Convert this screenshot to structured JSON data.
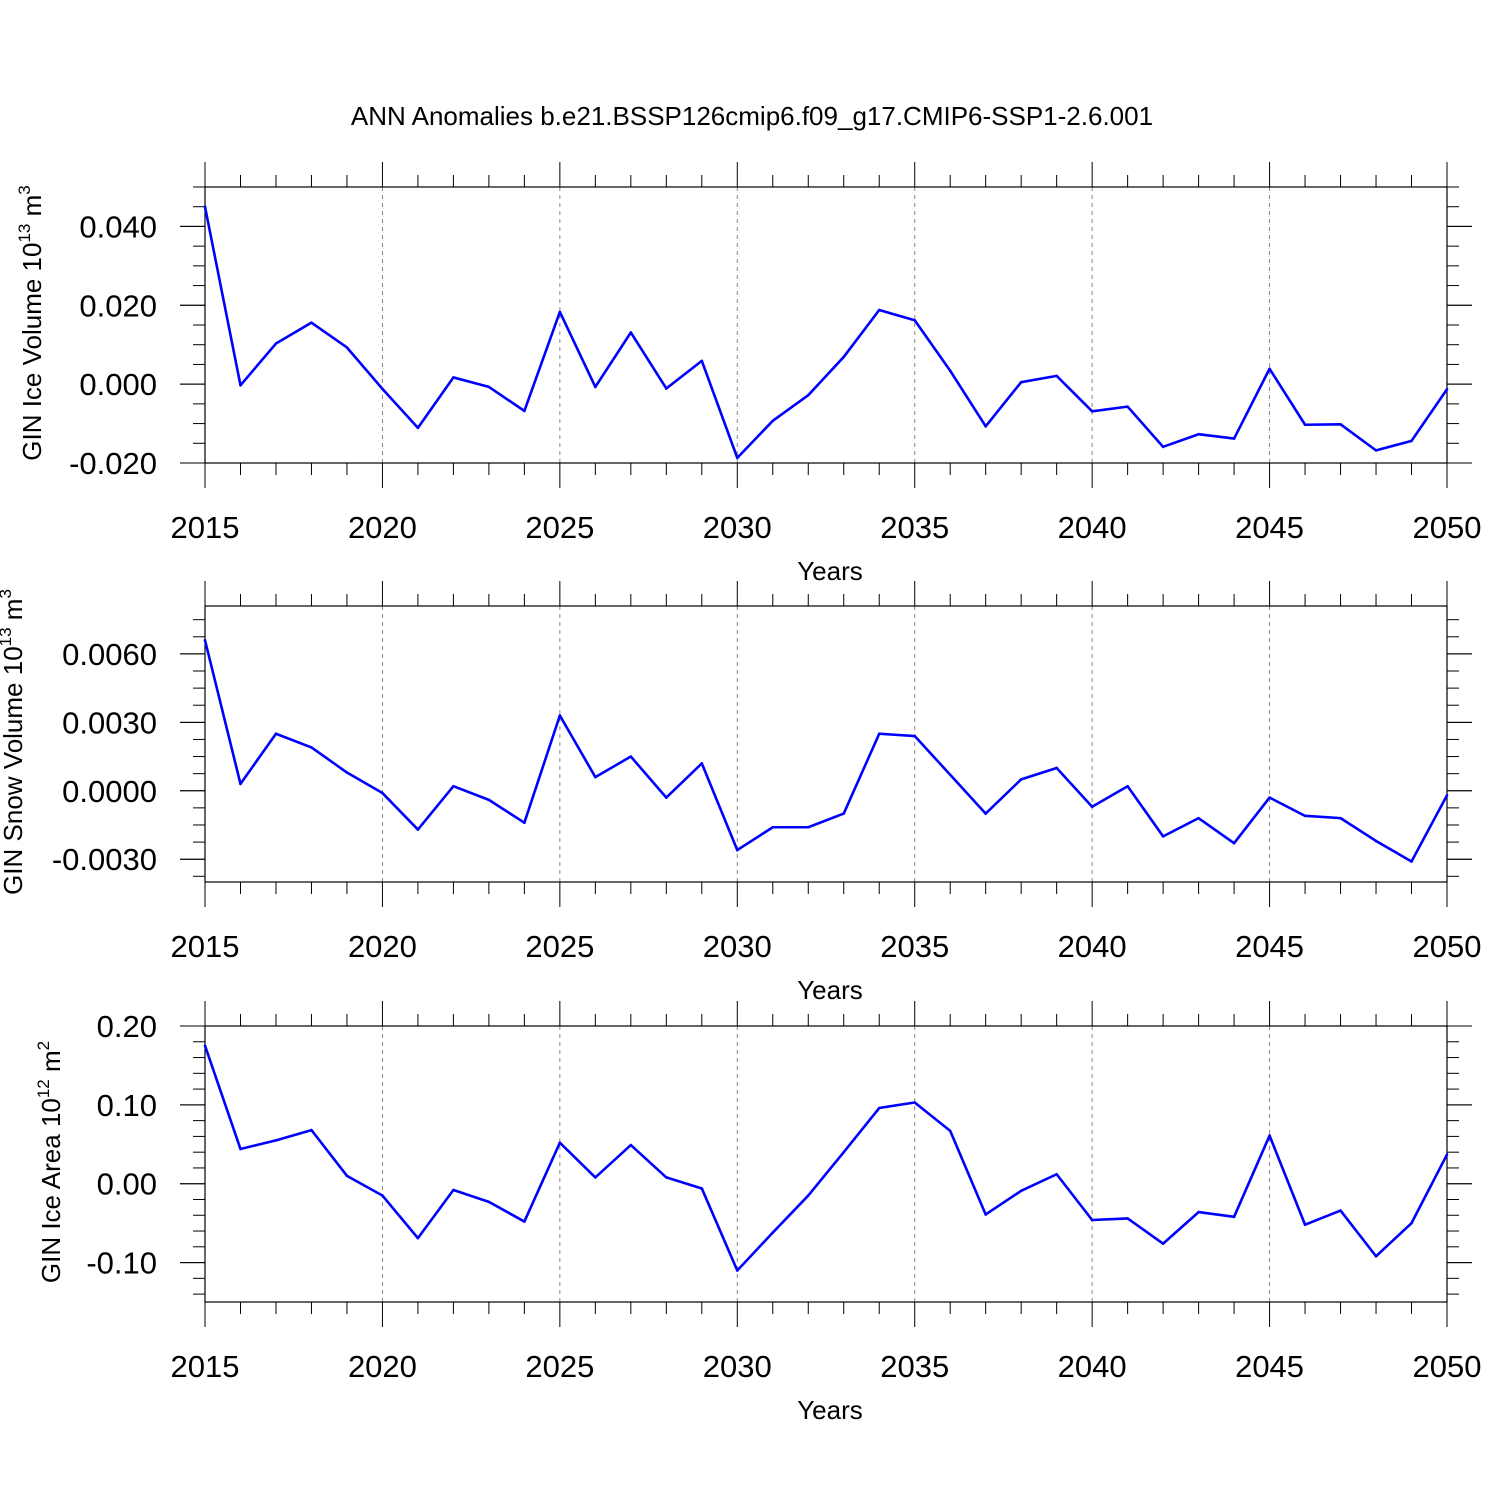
{
  "title": "ANN Anomalies b.e21.BSSP126cmip6.f09_g17.CMIP6-SSP1-2.6.001",
  "line_color": "#0000ff",
  "chart_data": [
    {
      "type": "line",
      "title": "ANN Anomalies b.e21.BSSP126cmip6.f09_g17.CMIP6-SSP1-2.6.001",
      "xlabel": "Years",
      "ylabel_parts": [
        "GIN Ice Volume 10",
        "13",
        " m",
        "3"
      ],
      "xlim": [
        2015,
        2050
      ],
      "ylim": [
        -0.02,
        0.05
      ],
      "x_ticks": [
        "2015",
        "2020",
        "2025",
        "2030",
        "2035",
        "2040",
        "2045",
        "2050"
      ],
      "y_ticks": [
        {
          "value": 0.04,
          "label": "0.040"
        },
        {
          "value": 0.02,
          "label": "0.020"
        },
        {
          "value": 0.0,
          "label": "0.000"
        },
        {
          "value": -0.02,
          "label": "-0.020"
        }
      ],
      "y_minor_step": 0.005,
      "grid_x": true,
      "series": [
        {
          "name": "GIN Ice Volume",
          "x": [
            2015,
            2016,
            2017,
            2018,
            2019,
            2020,
            2021,
            2022,
            2023,
            2024,
            2025,
            2026,
            2027,
            2028,
            2029,
            2030,
            2031,
            2032,
            2033,
            2034,
            2035,
            2036,
            2037,
            2038,
            2039,
            2040,
            2041,
            2042,
            2043,
            2044,
            2045,
            2046,
            2047,
            2048,
            2049,
            2050
          ],
          "values": [
            0.045,
            -0.0003,
            0.0103,
            0.0156,
            0.0093,
            -0.0012,
            -0.0111,
            0.0017,
            -0.0007,
            -0.0068,
            0.0183,
            -0.0007,
            0.0131,
            -0.0011,
            0.0059,
            -0.0187,
            -0.0093,
            -0.0028,
            0.0069,
            0.0188,
            0.0162,
            0.0034,
            -0.0107,
            0.0005,
            0.0021,
            -0.0069,
            -0.0057,
            -0.0159,
            -0.0127,
            -0.0138,
            0.0039,
            -0.0103,
            -0.0102,
            -0.0168,
            -0.0144,
            -0.0013
          ]
        }
      ]
    },
    {
      "type": "line",
      "title": "",
      "xlabel": "Years",
      "ylabel_parts": [
        "GIN Snow Volume 10",
        "13",
        " m",
        "3"
      ],
      "xlim": [
        2015,
        2050
      ],
      "ylim": [
        -0.004,
        0.0081
      ],
      "x_ticks": [
        "2015",
        "2020",
        "2025",
        "2030",
        "2035",
        "2040",
        "2045",
        "2050"
      ],
      "y_ticks": [
        {
          "value": 0.006,
          "label": "0.0060"
        },
        {
          "value": 0.003,
          "label": "0.0030"
        },
        {
          "value": 0.0,
          "label": "0.0000"
        },
        {
          "value": -0.003,
          "label": "-0.0030"
        }
      ],
      "y_minor_step": 0.00075,
      "grid_x": true,
      "series": [
        {
          "name": "GIN Snow Volume",
          "x": [
            2015,
            2016,
            2017,
            2018,
            2019,
            2020,
            2021,
            2022,
            2023,
            2024,
            2025,
            2026,
            2027,
            2028,
            2029,
            2030,
            2031,
            2032,
            2033,
            2034,
            2035,
            2036,
            2037,
            2038,
            2039,
            2040,
            2041,
            2042,
            2043,
            2044,
            2045,
            2046,
            2047,
            2048,
            2049,
            2050
          ],
          "values": [
            0.0066,
            0.0003,
            0.0025,
            0.0019,
            0.0008,
            -0.0001,
            -0.0017,
            0.0002,
            -0.0004,
            -0.0014,
            0.0033,
            0.0006,
            0.0015,
            -0.0003,
            0.0012,
            -0.0026,
            -0.0016,
            -0.0016,
            -0.001,
            0.0025,
            0.0024,
            0.0007,
            -0.001,
            0.0005,
            0.001,
            -0.0007,
            0.0002,
            -0.002,
            -0.0012,
            -0.0023,
            -0.0003,
            -0.0011,
            -0.0012,
            -0.0022,
            -0.0031,
            -0.0002
          ]
        }
      ]
    },
    {
      "type": "line",
      "title": "",
      "xlabel": "Years",
      "ylabel_parts": [
        "GIN Ice Area 10",
        "12",
        " m",
        "2"
      ],
      "xlim": [
        2015,
        2050
      ],
      "ylim": [
        -0.15,
        0.2
      ],
      "x_ticks": [
        "2015",
        "2020",
        "2025",
        "2030",
        "2035",
        "2040",
        "2045",
        "2050"
      ],
      "y_ticks": [
        {
          "value": 0.2,
          "label": "0.20"
        },
        {
          "value": 0.1,
          "label": "0.10"
        },
        {
          "value": 0.0,
          "label": "0.00"
        },
        {
          "value": -0.1,
          "label": "-0.10"
        }
      ],
      "y_minor_step": 0.02,
      "grid_x": true,
      "series": [
        {
          "name": "GIN Ice Area",
          "x": [
            2015,
            2016,
            2017,
            2018,
            2019,
            2020,
            2021,
            2022,
            2023,
            2024,
            2025,
            2026,
            2027,
            2028,
            2029,
            2030,
            2031,
            2032,
            2033,
            2034,
            2035,
            2036,
            2037,
            2038,
            2039,
            2040,
            2041,
            2042,
            2043,
            2044,
            2045,
            2046,
            2047,
            2048,
            2049,
            2050
          ],
          "values": [
            0.175,
            0.044,
            0.055,
            0.068,
            0.01,
            -0.015,
            -0.069,
            -0.008,
            -0.023,
            -0.048,
            0.052,
            0.008,
            0.049,
            0.008,
            -0.006,
            -0.11,
            -0.062,
            -0.015,
            0.04,
            0.096,
            0.103,
            0.067,
            -0.039,
            -0.009,
            0.012,
            -0.046,
            -0.044,
            -0.076,
            -0.036,
            -0.042,
            0.061,
            -0.052,
            -0.034,
            -0.092,
            -0.05,
            0.037
          ]
        }
      ]
    }
  ]
}
